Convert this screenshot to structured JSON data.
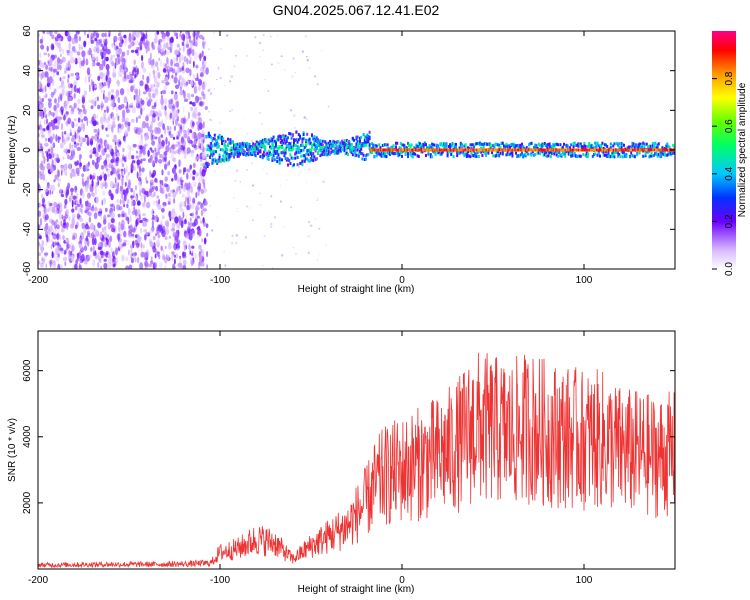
{
  "figure": {
    "title": "GN04.2025.067.12.41.E02"
  },
  "chart_data": [
    {
      "type": "heatmap",
      "panel": "spectrogram",
      "xlabel": "Height of straight line (km)",
      "ylabel": "Frequency (Hz)",
      "xlim": [
        -200,
        150
      ],
      "ylim": [
        -60,
        60
      ],
      "xticks": [
        -200,
        -100,
        0,
        100
      ],
      "yticks": [
        -60,
        -40,
        -20,
        0,
        20,
        40,
        60
      ],
      "colorbar": {
        "label": "Normalized spectral amplitude",
        "range": [
          0,
          1
        ],
        "ticks": [
          0.0,
          0.2,
          0.4,
          0.6,
          0.8
        ],
        "tick_labels": [
          "0.0",
          "0.2",
          "0.4",
          "0.6",
          "0.8"
        ]
      },
      "features": {
        "noise_region_x": [
          -200,
          -107
        ],
        "signal_start_x": -108,
        "signal_band_center_hz": 0,
        "strong_line_start_x": -18
      }
    },
    {
      "type": "line",
      "panel": "snr",
      "xlabel": "Height of straight line (km)",
      "ylabel": "SNR (10 * v/v)",
      "xlim": [
        -200,
        150
      ],
      "ylim": [
        0,
        7200
      ],
      "xticks": [
        -200,
        -100,
        0,
        100
      ],
      "yticks": [
        2000,
        4000,
        6000
      ],
      "color": "#ee3333",
      "series": [
        {
          "x": [
            -200,
            -180,
            -160,
            -140,
            -120,
            -105,
            -100,
            -90,
            -80,
            -70,
            -60,
            -50,
            -40,
            -30,
            -20,
            -15,
            -10,
            0,
            10,
            20,
            30,
            40,
            50,
            60,
            70,
            80,
            90,
            100,
            110,
            120,
            130,
            140,
            150
          ],
          "values": [
            120,
            130,
            140,
            140,
            150,
            180,
            500,
            620,
            900,
            800,
            300,
            700,
            1000,
            1300,
            2000,
            2500,
            2800,
            3000,
            3200,
            3400,
            3700,
            4300,
            4200,
            4100,
            4300,
            4100,
            4000,
            3900,
            3900,
            3600,
            3500,
            3400,
            3500
          ]
        }
      ]
    }
  ]
}
